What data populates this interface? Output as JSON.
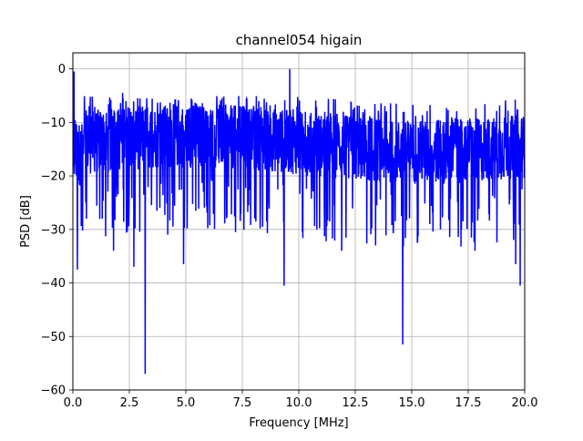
{
  "chart_data": {
    "type": "line",
    "title": "channel054 higain",
    "xlabel": "Frequency [MHz]",
    "ylabel": "PSD [dB]",
    "xlim": [
      0,
      20
    ],
    "ylim": [
      -60,
      3
    ],
    "grid": true,
    "x_ticks": [
      0,
      2.5,
      5,
      7.5,
      10,
      12.5,
      15,
      17.5,
      20
    ],
    "x_tick_labels": [
      "0.0",
      "2.5",
      "5.0",
      "7.5",
      "10.0",
      "12.5",
      "15.0",
      "17.5",
      "20.0"
    ],
    "y_ticks": [
      0,
      -10,
      -20,
      -30,
      -40,
      -50,
      -60
    ],
    "y_tick_labels": [
      "0",
      "−10",
      "−20",
      "−30",
      "−40",
      "−50",
      "−60"
    ],
    "series": [
      {
        "color": "#0000ff",
        "notable_points": [
          {
            "x": 0.05,
            "y": -0.5
          },
          {
            "x": 0.2,
            "y": -37.5
          },
          {
            "x": 0.6,
            "y": -28
          },
          {
            "x": 1.3,
            "y": -28
          },
          {
            "x": 1.8,
            "y": -34
          },
          {
            "x": 2.2,
            "y": -32
          },
          {
            "x": 2.2,
            "y": -4.5
          },
          {
            "x": 2.7,
            "y": -37
          },
          {
            "x": 3.2,
            "y": -57
          },
          {
            "x": 4.2,
            "y": -31
          },
          {
            "x": 4.9,
            "y": -36.5
          },
          {
            "x": 7.2,
            "y": -30.5
          },
          {
            "x": 8.4,
            "y": -29.5
          },
          {
            "x": 9.35,
            "y": -40.5
          },
          {
            "x": 9.6,
            "y": 0
          },
          {
            "x": 10.8,
            "y": -30
          },
          {
            "x": 11.9,
            "y": -34
          },
          {
            "x": 13.4,
            "y": -33
          },
          {
            "x": 14.6,
            "y": -51.5
          },
          {
            "x": 15.8,
            "y": -29
          },
          {
            "x": 17.2,
            "y": -30
          },
          {
            "x": 17.8,
            "y": -34
          },
          {
            "x": 19.6,
            "y": -36.5
          },
          {
            "x": 19.8,
            "y": -40.5
          }
        ]
      }
    ]
  }
}
